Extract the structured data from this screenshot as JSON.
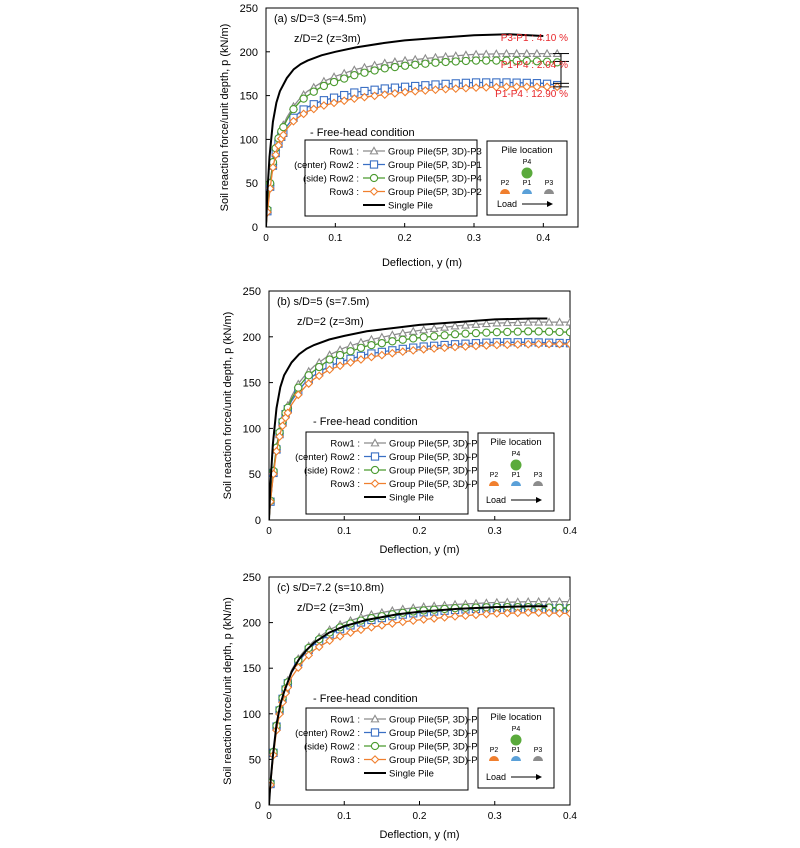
{
  "colors": {
    "P3": "#8c8c8c",
    "P1": "#3a6fc4",
    "P4": "#4a9a2e",
    "P2": "#f07f2e",
    "single": "#000000",
    "annotation": "#e8262a",
    "marker_P4": "#5aaa3c",
    "marker_P1": "#5aa0d8",
    "marker_P2": "#f07f2e",
    "marker_P3": "#8c8c8c"
  },
  "shared": {
    "condition_label": "- Free-head condition",
    "ylabel": "Soil reaction force/unit depth, p (kN/m)",
    "xlabel": "Deflection, y (m)",
    "depth_label": "z/D=2 (z=3m)",
    "legend": [
      {
        "row": "Row1 :",
        "series": "Group Pile(5P, 3D)-P3",
        "key": "P3",
        "marker": "triangle"
      },
      {
        "row": "(center) Row2 :",
        "series": "Group Pile(5P, 3D)-P1",
        "key": "P1",
        "marker": "square"
      },
      {
        "row": "(side) Row2 :",
        "series": "Group Pile(5P, 3D)-P4",
        "key": "P4",
        "marker": "circle"
      },
      {
        "row": "Row3 :",
        "series": "Group Pile(5P, 3D)-P2",
        "key": "P2",
        "marker": "diamond"
      },
      {
        "row": "",
        "series": "Single Pile",
        "key": "single",
        "marker": "none"
      }
    ],
    "pile_box": {
      "title": "Pile location",
      "labels": [
        "P4",
        "P2",
        "P1",
        "P3"
      ],
      "load_label": "Load"
    }
  },
  "chart_data": [
    {
      "type": "line",
      "title": "(a) s/D=3 (s=4.5m)",
      "xlabel": "Deflection, y (m)",
      "ylabel": "Soil reaction force/unit depth, p (kN/m)",
      "xlim": [
        0,
        0.45
      ],
      "ylim": [
        0,
        250
      ],
      "xticks": [
        0,
        0.1,
        0.2,
        0.3,
        0.4
      ],
      "xtick_labels": [
        "0",
        "0.1",
        "0.2",
        "0.3",
        "0.4"
      ],
      "yticks": [
        0,
        50,
        100,
        150,
        200,
        250
      ],
      "annotations": [
        "P3-P1 : 4.10 %",
        "P1-P4 : 2.04 %",
        "P1-P4 : 12.90 %"
      ],
      "series": [
        {
          "name": "Group Pile(5P, 3D)-P3",
          "key": "P3",
          "x": [
            0,
            0.002,
            0.005,
            0.01,
            0.015,
            0.02,
            0.03,
            0.04,
            0.05,
            0.06,
            0.08,
            0.1,
            0.13,
            0.17,
            0.2,
            0.25,
            0.3,
            0.35,
            0.4,
            0.42
          ],
          "y": [
            0,
            20,
            45,
            75,
            95,
            108,
            125,
            138,
            148,
            155,
            165,
            172,
            180,
            187,
            190,
            194,
            197,
            198,
            198,
            198
          ]
        },
        {
          "name": "Group Pile(5P, 3D)-P1",
          "key": "P1",
          "x": [
            0,
            0.002,
            0.005,
            0.01,
            0.015,
            0.02,
            0.03,
            0.04,
            0.05,
            0.06,
            0.08,
            0.1,
            0.13,
            0.17,
            0.2,
            0.25,
            0.3,
            0.35,
            0.4,
            0.42
          ],
          "y": [
            0,
            18,
            40,
            70,
            88,
            100,
            115,
            125,
            132,
            137,
            144,
            148,
            154,
            158,
            160,
            163,
            165,
            165,
            164,
            162
          ]
        },
        {
          "name": "Group Pile(5P, 3D)-P4",
          "key": "P4",
          "x": [
            0,
            0.002,
            0.005,
            0.01,
            0.015,
            0.02,
            0.03,
            0.04,
            0.05,
            0.06,
            0.08,
            0.1,
            0.13,
            0.17,
            0.2,
            0.25,
            0.3,
            0.35,
            0.4,
            0.42
          ],
          "y": [
            0,
            20,
            44,
            74,
            94,
            106,
            122,
            135,
            144,
            150,
            160,
            166,
            174,
            181,
            184,
            188,
            190,
            190,
            189,
            188
          ]
        },
        {
          "name": "Group Pile(5P, 3D)-P2",
          "key": "P2",
          "x": [
            0,
            0.002,
            0.005,
            0.01,
            0.015,
            0.02,
            0.03,
            0.04,
            0.05,
            0.06,
            0.08,
            0.1,
            0.13,
            0.17,
            0.2,
            0.25,
            0.3,
            0.35,
            0.4,
            0.42
          ],
          "y": [
            0,
            17,
            38,
            68,
            86,
            98,
            112,
            121,
            127,
            132,
            138,
            142,
            147,
            151,
            154,
            157,
            159,
            160,
            160,
            160
          ]
        },
        {
          "name": "Single Pile",
          "key": "single",
          "x": [
            0,
            0.002,
            0.005,
            0.01,
            0.015,
            0.02,
            0.03,
            0.04,
            0.05,
            0.06,
            0.08,
            0.1,
            0.13,
            0.17,
            0.2,
            0.25,
            0.3,
            0.35,
            0.4
          ],
          "y": [
            0,
            40,
            80,
            120,
            142,
            155,
            170,
            180,
            186,
            190,
            196,
            200,
            205,
            210,
            213,
            216,
            219,
            220,
            218
          ]
        }
      ]
    },
    {
      "type": "line",
      "title": "(b) s/D=5 (s=7.5m)",
      "xlabel": "Deflection, y (m)",
      "ylabel": "Soil reaction force/unit depth, p (kN/m)",
      "xlim": [
        0,
        0.4
      ],
      "ylim": [
        0,
        250
      ],
      "xticks": [
        0,
        0.1,
        0.2,
        0.3,
        0.4
      ],
      "xtick_labels": [
        "0",
        "0.1",
        "0.2",
        "0.3",
        "0.4"
      ],
      "yticks": [
        0,
        50,
        100,
        150,
        200,
        250
      ],
      "annotations": [],
      "series": [
        {
          "name": "Group Pile(5P, 3D)-P3",
          "key": "P3",
          "x": [
            0,
            0.002,
            0.005,
            0.01,
            0.015,
            0.02,
            0.03,
            0.04,
            0.05,
            0.06,
            0.08,
            0.1,
            0.13,
            0.17,
            0.2,
            0.25,
            0.3,
            0.35,
            0.4
          ],
          "y": [
            0,
            22,
            48,
            80,
            102,
            115,
            135,
            150,
            160,
            168,
            180,
            188,
            196,
            203,
            207,
            212,
            215,
            216,
            216
          ]
        },
        {
          "name": "Group Pile(5P, 3D)-P1",
          "key": "P1",
          "x": [
            0,
            0.002,
            0.005,
            0.01,
            0.015,
            0.02,
            0.03,
            0.04,
            0.05,
            0.06,
            0.08,
            0.1,
            0.13,
            0.17,
            0.2,
            0.25,
            0.3,
            0.35,
            0.4
          ],
          "y": [
            0,
            20,
            45,
            77,
            98,
            112,
            130,
            142,
            152,
            158,
            168,
            174,
            181,
            186,
            189,
            192,
            194,
            194,
            193
          ]
        },
        {
          "name": "Group Pile(5P, 3D)-P4",
          "key": "P4",
          "x": [
            0,
            0.002,
            0.005,
            0.01,
            0.015,
            0.02,
            0.03,
            0.04,
            0.05,
            0.06,
            0.08,
            0.1,
            0.13,
            0.17,
            0.2,
            0.25,
            0.3,
            0.35,
            0.4
          ],
          "y": [
            0,
            21,
            47,
            79,
            100,
            113,
            132,
            146,
            156,
            163,
            175,
            182,
            190,
            196,
            199,
            203,
            205,
            206,
            205
          ]
        },
        {
          "name": "Group Pile(5P, 3D)-P2",
          "key": "P2",
          "x": [
            0,
            0.002,
            0.005,
            0.01,
            0.015,
            0.02,
            0.03,
            0.04,
            0.05,
            0.06,
            0.08,
            0.1,
            0.13,
            0.17,
            0.2,
            0.25,
            0.3,
            0.35,
            0.4
          ],
          "y": [
            0,
            20,
            44,
            75,
            95,
            108,
            126,
            138,
            147,
            154,
            164,
            170,
            177,
            183,
            186,
            189,
            191,
            192,
            192
          ]
        },
        {
          "name": "Single Pile",
          "key": "single",
          "x": [
            0,
            0.002,
            0.005,
            0.01,
            0.015,
            0.02,
            0.03,
            0.04,
            0.05,
            0.06,
            0.08,
            0.1,
            0.13,
            0.17,
            0.2,
            0.25,
            0.3,
            0.35,
            0.37
          ],
          "y": [
            0,
            40,
            82,
            122,
            145,
            158,
            172,
            181,
            187,
            191,
            197,
            201,
            206,
            210,
            213,
            216,
            219,
            220,
            220
          ]
        }
      ]
    },
    {
      "type": "line",
      "title": "(c) s/D=7.2 (s=10.8m)",
      "xlabel": "Deflection, y (m)",
      "ylabel": "Soil reaction force/unit depth, p (kN/m)",
      "xlim": [
        0,
        0.4
      ],
      "ylim": [
        0,
        250
      ],
      "xticks": [
        0,
        0.1,
        0.2,
        0.3,
        0.4
      ],
      "xtick_labels": [
        "0",
        "0.1",
        "0.2",
        "0.3",
        "0.4"
      ],
      "yticks": [
        0,
        50,
        100,
        150,
        200,
        250
      ],
      "annotations": [],
      "series": [
        {
          "name": "Group Pile(5P, 3D)-P3",
          "key": "P3",
          "x": [
            0,
            0.002,
            0.005,
            0.01,
            0.015,
            0.02,
            0.03,
            0.04,
            0.05,
            0.06,
            0.08,
            0.1,
            0.13,
            0.17,
            0.2,
            0.25,
            0.3,
            0.35,
            0.4
          ],
          "y": [
            0,
            24,
            52,
            88,
            110,
            125,
            148,
            162,
            172,
            180,
            192,
            200,
            208,
            214,
            217,
            220,
            222,
            223,
            223
          ]
        },
        {
          "name": "Group Pile(5P, 3D)-P1",
          "key": "P1",
          "x": [
            0,
            0.002,
            0.005,
            0.01,
            0.015,
            0.02,
            0.03,
            0.04,
            0.05,
            0.06,
            0.08,
            0.1,
            0.13,
            0.17,
            0.2,
            0.25,
            0.3,
            0.35,
            0.4
          ],
          "y": [
            0,
            23,
            50,
            86,
            108,
            122,
            145,
            158,
            168,
            176,
            187,
            195,
            202,
            208,
            211,
            214,
            216,
            216,
            215
          ]
        },
        {
          "name": "Group Pile(5P, 3D)-P4",
          "key": "P4",
          "x": [
            0,
            0.002,
            0.005,
            0.01,
            0.015,
            0.02,
            0.03,
            0.04,
            0.05,
            0.06,
            0.08,
            0.1,
            0.13,
            0.17,
            0.2,
            0.25,
            0.3,
            0.35,
            0.4
          ],
          "y": [
            0,
            24,
            51,
            87,
            109,
            123,
            146,
            160,
            170,
            178,
            189,
            197,
            204,
            210,
            213,
            216,
            217,
            217,
            216
          ]
        },
        {
          "name": "Group Pile(5P, 3D)-P2",
          "key": "P2",
          "x": [
            0,
            0.002,
            0.005,
            0.01,
            0.015,
            0.02,
            0.03,
            0.04,
            0.05,
            0.06,
            0.08,
            0.1,
            0.13,
            0.17,
            0.2,
            0.25,
            0.3,
            0.35,
            0.4
          ],
          "y": [
            0,
            22,
            48,
            82,
            104,
            118,
            140,
            152,
            162,
            170,
            180,
            187,
            194,
            200,
            203,
            207,
            210,
            211,
            210
          ]
        },
        {
          "name": "Single Pile",
          "key": "single",
          "x": [
            0,
            0.002,
            0.005,
            0.01,
            0.015,
            0.02,
            0.03,
            0.04,
            0.05,
            0.06,
            0.08,
            0.1,
            0.13,
            0.17,
            0.2,
            0.25,
            0.3,
            0.35,
            0.37
          ],
          "y": [
            0,
            25,
            53,
            88,
            110,
            124,
            146,
            160,
            170,
            178,
            189,
            196,
            203,
            209,
            212,
            215,
            217,
            218,
            218
          ]
        }
      ]
    }
  ]
}
